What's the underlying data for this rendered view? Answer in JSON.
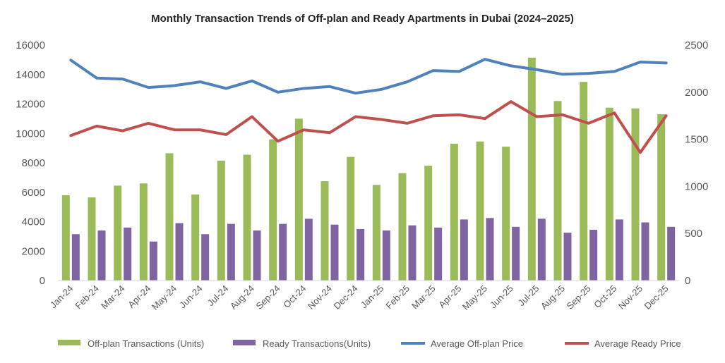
{
  "chart_data": {
    "type": "bar",
    "title": "Monthly Transaction Trends of Off-plan and Ready Apartments in Dubai (2024–2025)",
    "categories": [
      "Jan-24",
      "Feb-24",
      "Mar-24",
      "Apr-24",
      "May-24",
      "Jun-24",
      "Jul-24",
      "Aug-24",
      "Sep-24",
      "Oct-24",
      "Nov-24",
      "Dec-24",
      "Jan-25",
      "Feb-25",
      "Mar-25",
      "Apr-25",
      "May-25",
      "Jun-25",
      "Jul-25",
      "Aug-25",
      "Sep-25",
      "Oct-25",
      "Nov-25",
      "Dec-25"
    ],
    "ylim_left": [
      0,
      16000
    ],
    "ylim_right": [
      0,
      2500
    ],
    "yticks_left": [
      "0",
      "2000",
      "4000",
      "6000",
      "8000",
      "10000",
      "12000",
      "14000",
      "16000"
    ],
    "yticks_right": [
      "0",
      "500",
      "1000",
      "1500",
      "2000",
      "2500"
    ],
    "grid": false,
    "legend_position": "bottom",
    "series": [
      {
        "name": "Off-plan Transactions (Units)",
        "kind": "bar",
        "axis": "left",
        "color": "#9BBB59",
        "values": [
          5800,
          5650,
          6450,
          6600,
          8650,
          5850,
          8150,
          8550,
          9600,
          11000,
          6750,
          8400,
          6500,
          7300,
          7800,
          9300,
          9450,
          9100,
          15150,
          12200,
          13500,
          11750,
          11700,
          11300
        ]
      },
      {
        "name": "Ready Transactions(Units)",
        "kind": "bar",
        "axis": "left",
        "color": "#8064A2",
        "values": [
          3150,
          3400,
          3600,
          2650,
          3900,
          3150,
          3850,
          3400,
          3850,
          4200,
          3800,
          3500,
          3400,
          3750,
          3600,
          4150,
          4250,
          3650,
          4200,
          3250,
          3450,
          4150,
          3950,
          3650
        ]
      },
      {
        "name": "Average Off-plan Price",
        "kind": "line",
        "axis": "right",
        "color": "#4F81BD",
        "values": [
          2340,
          2150,
          2140,
          2050,
          2070,
          2110,
          2040,
          2120,
          2000,
          2040,
          2060,
          1990,
          2030,
          2110,
          2230,
          2220,
          2350,
          2280,
          2240,
          2190,
          2200,
          2220,
          2320,
          2310
        ]
      },
      {
        "name": "Average Ready Price",
        "kind": "line",
        "axis": "right",
        "color": "#C0504D",
        "values": [
          1540,
          1640,
          1590,
          1670,
          1600,
          1600,
          1550,
          1740,
          1480,
          1600,
          1570,
          1740,
          1710,
          1670,
          1750,
          1760,
          1720,
          1900,
          1740,
          1760,
          1670,
          1780,
          1360,
          1750
        ]
      }
    ]
  }
}
